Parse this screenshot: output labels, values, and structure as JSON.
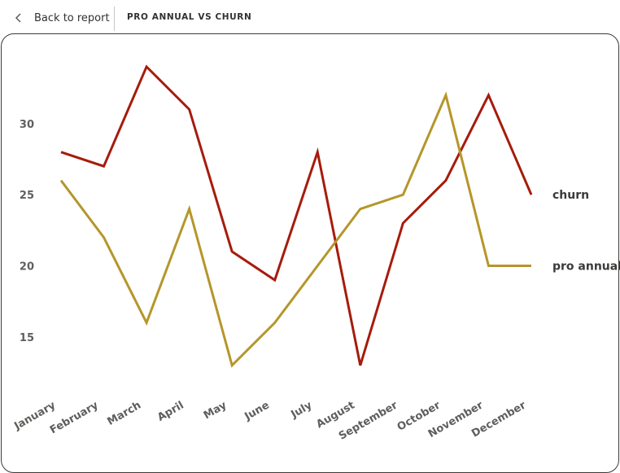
{
  "header": {
    "back_label": "Back to report",
    "title": "PRO ANNUAL VS CHURN"
  },
  "colors": {
    "churn": "#a51c0c",
    "pro_annual": "#b5962a"
  },
  "icons": {
    "back": "chevron-left-icon"
  },
  "chart_data": {
    "type": "line",
    "title": "",
    "xlabel": "",
    "ylabel": "",
    "categories": [
      "January",
      "February",
      "March",
      "April",
      "May",
      "June",
      "July",
      "August",
      "September",
      "October",
      "November",
      "December"
    ],
    "series": [
      {
        "name": "churn",
        "values": [
          28,
          27,
          34,
          31,
          21,
          19,
          28,
          13,
          23,
          26,
          32,
          25
        ]
      },
      {
        "name": "pro annual",
        "values": [
          26,
          22,
          16,
          24,
          13,
          16,
          20,
          24,
          25,
          32,
          20,
          20
        ]
      }
    ],
    "yticks": [
      15,
      20,
      25,
      30
    ],
    "ylim": [
      11.5,
      35.2
    ],
    "grid": false,
    "legend": "right, labels at line ends"
  }
}
